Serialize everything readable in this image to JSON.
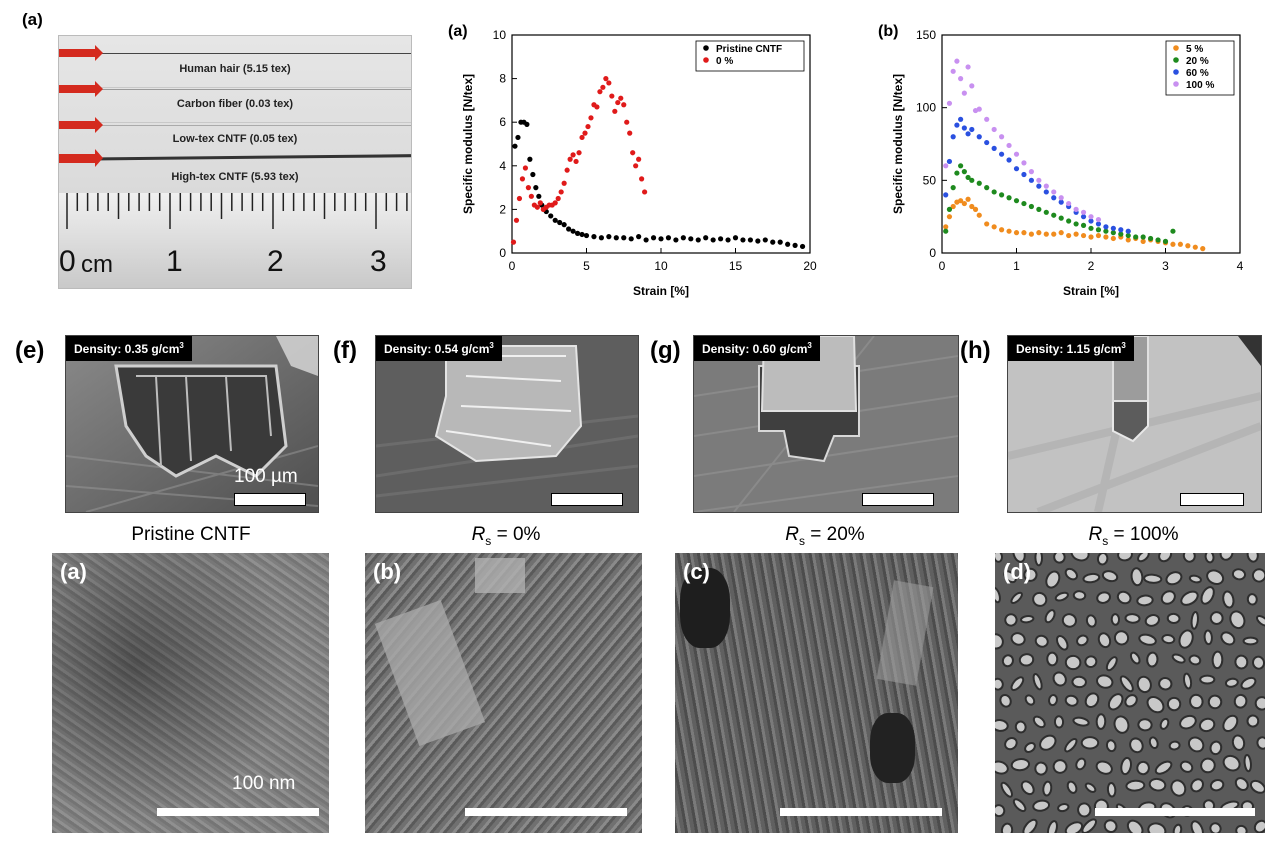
{
  "top_panel_a": {
    "label": "(a)",
    "fibers": [
      "Human hair (5.15 tex)",
      "Carbon fiber (0.03 tex)",
      "Low-tex CNTF (0.05 tex)",
      "High-tex CNTF (5.93 tex)"
    ],
    "ruler": {
      "unit": "cm",
      "numbers": [
        "0",
        "1",
        "2",
        "3"
      ]
    }
  },
  "chart_data": [
    {
      "type": "scatter",
      "panel_label": "(a)",
      "title": "",
      "xlabel": "Strain [%]",
      "ylabel": "Specific modulus [N/tex]",
      "xlim": [
        0,
        20
      ],
      "ylim": [
        0,
        10
      ],
      "xticks": [
        "0",
        "5",
        "10",
        "15",
        "20"
      ],
      "yticks": [
        "0",
        "2",
        "4",
        "6",
        "8",
        "10"
      ],
      "legend_position": "top-right",
      "series": [
        {
          "name": "Pristine CNTF",
          "color": "#000000",
          "x": [
            0.2,
            0.4,
            0.6,
            0.8,
            1.0,
            1.2,
            1.4,
            1.6,
            1.8,
            2.0,
            2.3,
            2.6,
            2.9,
            3.2,
            3.5,
            3.8,
            4.1,
            4.4,
            4.7,
            5.0,
            5.5,
            6.0,
            6.5,
            7.0,
            7.5,
            8.0,
            8.5,
            9.0,
            9.5,
            10.0,
            10.5,
            11.0,
            11.5,
            12.0,
            12.5,
            13.0,
            13.5,
            14.0,
            14.5,
            15.0,
            15.5,
            16.0,
            16.5,
            17.0,
            17.5,
            18.0,
            18.5,
            19.0,
            19.5
          ],
          "y": [
            4.9,
            5.3,
            6.0,
            6.0,
            5.9,
            4.3,
            3.6,
            3.0,
            2.6,
            2.2,
            1.9,
            1.7,
            1.5,
            1.4,
            1.3,
            1.1,
            1.0,
            0.9,
            0.85,
            0.8,
            0.75,
            0.7,
            0.75,
            0.7,
            0.7,
            0.65,
            0.75,
            0.6,
            0.7,
            0.65,
            0.7,
            0.6,
            0.7,
            0.65,
            0.6,
            0.7,
            0.6,
            0.65,
            0.6,
            0.7,
            0.6,
            0.6,
            0.55,
            0.6,
            0.5,
            0.5,
            0.4,
            0.35,
            0.3
          ]
        },
        {
          "name": "0 %",
          "color": "#e01a1a",
          "x": [
            0.1,
            0.3,
            0.5,
            0.7,
            0.9,
            1.1,
            1.3,
            1.5,
            1.7,
            1.9,
            2.1,
            2.3,
            2.5,
            2.7,
            2.9,
            3.1,
            3.3,
            3.5,
            3.7,
            3.9,
            4.1,
            4.3,
            4.5,
            4.7,
            4.9,
            5.1,
            5.3,
            5.5,
            5.7,
            5.9,
            6.1,
            6.3,
            6.5,
            6.7,
            6.9,
            7.1,
            7.3,
            7.5,
            7.7,
            7.9,
            8.1,
            8.3,
            8.5,
            8.7,
            8.9
          ],
          "y": [
            0.5,
            1.5,
            2.5,
            3.4,
            3.9,
            3.0,
            2.6,
            2.2,
            2.1,
            2.3,
            2.0,
            2.1,
            2.2,
            2.2,
            2.3,
            2.5,
            2.8,
            3.2,
            3.8,
            4.3,
            4.5,
            4.2,
            4.6,
            5.3,
            5.5,
            5.8,
            6.2,
            6.8,
            6.7,
            7.4,
            7.6,
            8.0,
            7.8,
            7.2,
            6.5,
            6.9,
            7.1,
            6.8,
            6.0,
            5.5,
            4.6,
            4.0,
            4.3,
            3.4,
            2.8
          ]
        }
      ]
    },
    {
      "type": "scatter",
      "panel_label": "(b)",
      "title": "",
      "xlabel": "Strain [%]",
      "ylabel": "Specific modulus [N/tex]",
      "xlim": [
        0,
        4
      ],
      "ylim": [
        0,
        150
      ],
      "xticks": [
        "0",
        "1",
        "2",
        "3",
        "4"
      ],
      "yticks": [
        "0",
        "50",
        "100",
        "150"
      ],
      "legend_position": "top-right",
      "series": [
        {
          "name": "5 %",
          "color": "#f08c1e",
          "x": [
            0.05,
            0.1,
            0.15,
            0.2,
            0.25,
            0.3,
            0.35,
            0.4,
            0.45,
            0.5,
            0.6,
            0.7,
            0.8,
            0.9,
            1.0,
            1.1,
            1.2,
            1.3,
            1.4,
            1.5,
            1.6,
            1.7,
            1.8,
            1.9,
            2.0,
            2.1,
            2.2,
            2.3,
            2.4,
            2.5,
            2.6,
            2.7,
            2.8,
            2.9,
            3.0,
            3.1,
            3.2,
            3.3,
            3.4,
            3.5
          ],
          "y": [
            18,
            25,
            32,
            35,
            36,
            34,
            37,
            32,
            30,
            26,
            20,
            18,
            16,
            15,
            14,
            14,
            13,
            14,
            13,
            13,
            14,
            12,
            13,
            12,
            11,
            12,
            11,
            10,
            11,
            9,
            10,
            8,
            9,
            8,
            7,
            6,
            6,
            5,
            4,
            3
          ]
        },
        {
          "name": "20 %",
          "color": "#1e8a1e",
          "x": [
            0.05,
            0.1,
            0.15,
            0.2,
            0.25,
            0.3,
            0.35,
            0.4,
            0.5,
            0.6,
            0.7,
            0.8,
            0.9,
            1.0,
            1.1,
            1.2,
            1.3,
            1.4,
            1.5,
            1.6,
            1.7,
            1.8,
            1.9,
            2.0,
            2.1,
            2.2,
            2.3,
            2.4,
            2.5,
            2.6,
            2.7,
            2.8,
            2.9,
            3.0,
            3.1
          ],
          "y": [
            15,
            30,
            45,
            55,
            60,
            56,
            52,
            50,
            48,
            45,
            42,
            40,
            38,
            36,
            34,
            32,
            30,
            28,
            26,
            24,
            22,
            20,
            19,
            17,
            16,
            15,
            14,
            13,
            12,
            11,
            11,
            10,
            9,
            8,
            15
          ]
        },
        {
          "name": "60 %",
          "color": "#2a50e0",
          "x": [
            0.05,
            0.1,
            0.15,
            0.2,
            0.25,
            0.3,
            0.35,
            0.4,
            0.5,
            0.6,
            0.7,
            0.8,
            0.9,
            1.0,
            1.1,
            1.2,
            1.3,
            1.4,
            1.5,
            1.6,
            1.7,
            1.8,
            1.9,
            2.0,
            2.1,
            2.2,
            2.3,
            2.4,
            2.5
          ],
          "y": [
            40,
            63,
            80,
            88,
            92,
            86,
            82,
            85,
            80,
            76,
            72,
            68,
            64,
            58,
            54,
            50,
            46,
            42,
            38,
            35,
            32,
            28,
            25,
            22,
            20,
            18,
            17,
            16,
            15
          ]
        },
        {
          "name": "100 %",
          "color": "#c890f0",
          "x": [
            0.05,
            0.1,
            0.15,
            0.2,
            0.25,
            0.3,
            0.35,
            0.4,
            0.45,
            0.5,
            0.6,
            0.7,
            0.8,
            0.9,
            1.0,
            1.1,
            1.2,
            1.3,
            1.4,
            1.5,
            1.6,
            1.7,
            1.8,
            1.9,
            2.0,
            2.1
          ],
          "y": [
            60,
            103,
            125,
            132,
            120,
            110,
            128,
            115,
            98,
            99,
            92,
            85,
            80,
            74,
            68,
            62,
            56,
            50,
            46,
            42,
            38,
            34,
            30,
            28,
            25,
            23
          ]
        }
      ]
    }
  ],
  "sem_panels": [
    {
      "letter": "(e)",
      "density": "Density: 0.35 g/cm",
      "sup": "3",
      "scale_label": "100 µm"
    },
    {
      "letter": "(f)",
      "density": "Density: 0.54 g/cm",
      "sup": "3",
      "scale_label": ""
    },
    {
      "letter": "(g)",
      "density": "Density: 0.60 g/cm",
      "sup": "3",
      "scale_label": ""
    },
    {
      "letter": "(h)",
      "density": "Density: 1.15 g/cm",
      "sup": "3",
      "scale_label": ""
    }
  ],
  "tem_panels": [
    {
      "caption": "Pristine CNTF",
      "letter": "(a)",
      "scale_label": "100 nm"
    },
    {
      "caption_italic": "R",
      "caption_sub": "s",
      "caption_rest": " = 0%",
      "letter": "(b)"
    },
    {
      "caption_italic": "R",
      "caption_sub": "s",
      "caption_rest": " = 20%",
      "letter": "(c)"
    },
    {
      "caption_italic": "R",
      "caption_sub": "s",
      "caption_rest": " = 100%",
      "letter": "(d)"
    }
  ],
  "colors": {
    "arrow": "#d42a1e",
    "badge": "#000000"
  }
}
